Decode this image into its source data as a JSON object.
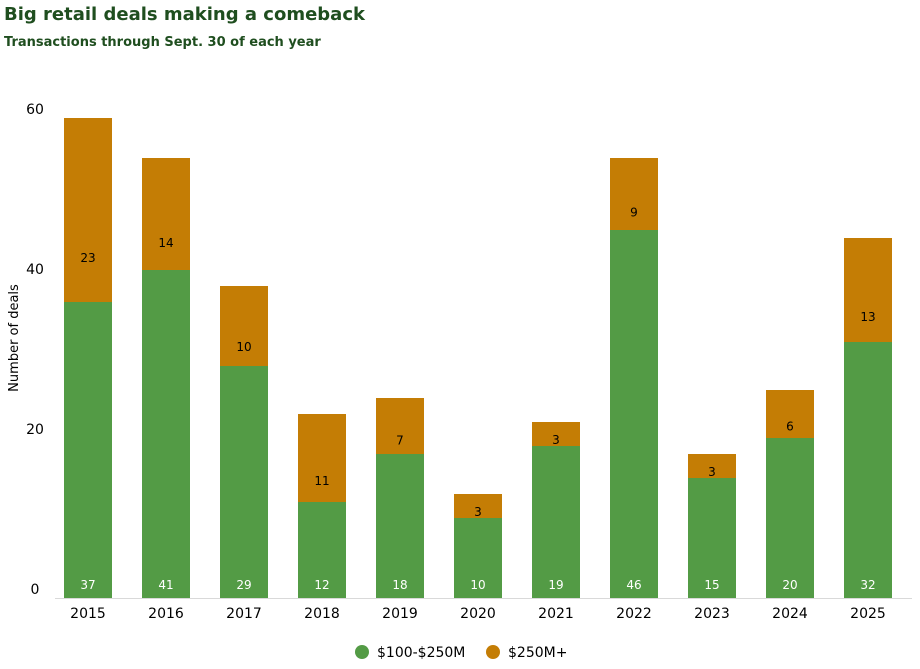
{
  "chart_data": {
    "type": "bar",
    "stacked": true,
    "title": "Big retail deals making a comeback",
    "subtitle": "Transactions through Sept. 30 of each year",
    "xlabel": "",
    "ylabel": "Number of deals",
    "ylim": [
      0,
      60
    ],
    "yticks": [
      0,
      20,
      40,
      60
    ],
    "grid": false,
    "legend_position": "bottom-center",
    "categories": [
      "2015",
      "2016",
      "2017",
      "2018",
      "2019",
      "2020",
      "2021",
      "2022",
      "2023",
      "2024",
      "2025"
    ],
    "series": [
      {
        "name": "$100-$250M",
        "color": "#539b45",
        "label_color": "#ffffff",
        "values": [
          37,
          41,
          29,
          12,
          18,
          10,
          19,
          46,
          15,
          20,
          32
        ]
      },
      {
        "name": "$250M+",
        "color": "#c47d05",
        "label_color": "#000000",
        "values": [
          23,
          14,
          10,
          11,
          7,
          3,
          3,
          9,
          3,
          6,
          13
        ]
      }
    ]
  }
}
